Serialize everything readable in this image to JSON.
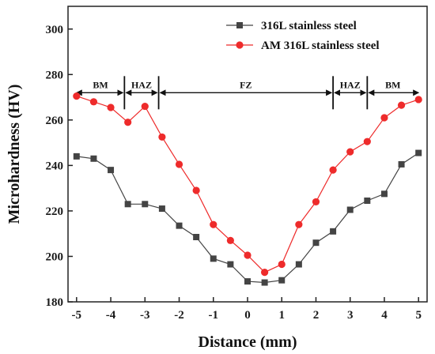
{
  "chart_data": {
    "type": "line",
    "xlabel": "Distance (mm)",
    "ylabel": "Microhardness (HV)",
    "xlim": [
      -5.25,
      5.25
    ],
    "ylim": [
      180,
      310
    ],
    "xticks": [
      -5,
      -4,
      -3,
      -2,
      -1,
      0,
      1,
      2,
      3,
      4,
      5
    ],
    "yticks": [
      180,
      200,
      220,
      240,
      260,
      280,
      300
    ],
    "grid": false,
    "legend_position": "top-right",
    "series": [
      {
        "name": "316L stainless steel",
        "color": "#444444",
        "marker": "square",
        "x": [
          -5,
          -4.5,
          -4,
          -3.5,
          -3,
          -2.5,
          -2,
          -1.5,
          -1,
          -0.5,
          0,
          0.5,
          1,
          1.5,
          2,
          2.5,
          3,
          3.5,
          4,
          4.5,
          5
        ],
        "y": [
          244,
          243,
          238,
          223,
          223,
          221,
          213.5,
          208.5,
          199,
          196.5,
          189,
          188.5,
          189.5,
          196.5,
          206,
          211,
          220.5,
          224.5,
          227.5,
          240.5,
          245.5
        ]
      },
      {
        "name": "AM 316L stainless steel",
        "color": "#ee2b2b",
        "marker": "circle",
        "x": [
          -5,
          -4.5,
          -4,
          -3.5,
          -3,
          -2.5,
          -2,
          -1.5,
          -1,
          -0.5,
          0,
          0.5,
          1,
          1.5,
          2,
          2.5,
          3,
          3.5,
          4,
          4.5,
          5
        ],
        "y": [
          270.5,
          268,
          265.5,
          259,
          266,
          252.5,
          240.5,
          229,
          214,
          207,
          200.5,
          193,
          196.5,
          214,
          224,
          238,
          246,
          250.5,
          261,
          266.5,
          269
        ]
      }
    ],
    "zones": {
      "y": 272,
      "boundaries": [
        -5,
        -3.6,
        -2.6,
        2.5,
        3.5,
        5
      ],
      "labels": [
        "BM",
        "HAZ",
        "FZ",
        "HAZ",
        "BM"
      ]
    }
  }
}
